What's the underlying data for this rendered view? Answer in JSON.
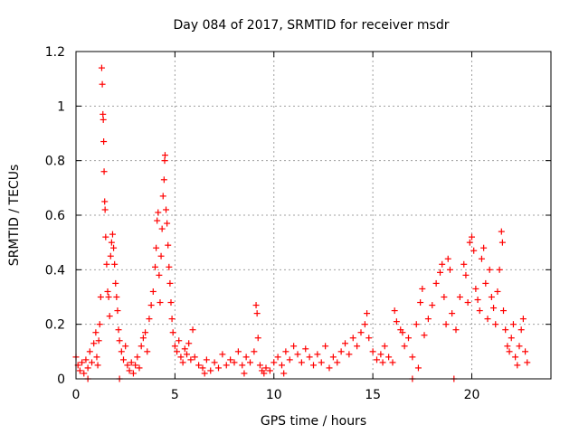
{
  "chart_data": {
    "type": "scatter",
    "title": "Day 084 of 2017, SRMTID for receiver msdr",
    "xlabel": "GPS time / hours",
    "ylabel": "SRMTID / TECUs",
    "xlim": [
      0,
      24
    ],
    "ylim": [
      0,
      1.2
    ],
    "x_ticks": [
      0,
      5,
      10,
      15,
      20
    ],
    "x_tick_labels": [
      "0",
      "5",
      "10",
      "15",
      "20"
    ],
    "y_ticks": [
      0,
      0.2,
      0.4,
      0.6,
      0.8,
      1,
      1.2
    ],
    "y_tick_labels": [
      "0",
      "0.2",
      "0.4",
      "0.6",
      "0.8",
      "1",
      "1.2"
    ],
    "grid": true,
    "marker": "+",
    "marker_color": "#ff0000",
    "series": [
      {
        "name": "SRMTID",
        "points": [
          [
            0.0,
            0.08
          ],
          [
            0.1,
            0.05
          ],
          [
            0.2,
            0.03
          ],
          [
            0.3,
            0.06
          ],
          [
            0.4,
            0.02
          ],
          [
            0.5,
            0.07
          ],
          [
            0.6,
            0.04
          ],
          [
            0.7,
            0.1
          ],
          [
            0.8,
            0.06
          ],
          [
            0.9,
            0.13
          ],
          [
            1.0,
            0.17
          ],
          [
            1.05,
            0.08
          ],
          [
            1.1,
            0.05
          ],
          [
            1.15,
            0.14
          ],
          [
            1.2,
            0.2
          ],
          [
            1.25,
            0.3
          ],
          [
            1.3,
            1.14
          ],
          [
            1.33,
            1.08
          ],
          [
            1.36,
            0.97
          ],
          [
            1.38,
            0.95
          ],
          [
            1.4,
            0.87
          ],
          [
            1.42,
            0.76
          ],
          [
            1.45,
            0.65
          ],
          [
            1.47,
            0.62
          ],
          [
            1.5,
            0.52
          ],
          [
            1.55,
            0.42
          ],
          [
            1.6,
            0.32
          ],
          [
            1.65,
            0.3
          ],
          [
            1.7,
            0.23
          ],
          [
            1.75,
            0.45
          ],
          [
            1.8,
            0.5
          ],
          [
            1.85,
            0.53
          ],
          [
            1.9,
            0.48
          ],
          [
            1.95,
            0.42
          ],
          [
            2.0,
            0.35
          ],
          [
            2.05,
            0.3
          ],
          [
            2.1,
            0.25
          ],
          [
            2.15,
            0.18
          ],
          [
            2.2,
            0.14
          ],
          [
            2.3,
            0.1
          ],
          [
            2.4,
            0.07
          ],
          [
            2.5,
            0.12
          ],
          [
            2.6,
            0.05
          ],
          [
            2.7,
            0.03
          ],
          [
            2.8,
            0.06
          ],
          [
            2.9,
            0.02
          ],
          [
            3.0,
            0.05
          ],
          [
            3.1,
            0.08
          ],
          [
            3.2,
            0.04
          ],
          [
            3.3,
            0.12
          ],
          [
            3.4,
            0.15
          ],
          [
            3.5,
            0.17
          ],
          [
            3.6,
            0.1
          ],
          [
            3.7,
            0.22
          ],
          [
            3.8,
            0.27
          ],
          [
            3.9,
            0.32
          ],
          [
            4.0,
            0.41
          ],
          [
            4.05,
            0.48
          ],
          [
            4.1,
            0.58
          ],
          [
            4.15,
            0.61
          ],
          [
            4.2,
            0.38
          ],
          [
            4.25,
            0.28
          ],
          [
            4.3,
            0.45
          ],
          [
            4.35,
            0.55
          ],
          [
            4.4,
            0.67
          ],
          [
            4.45,
            0.73
          ],
          [
            4.48,
            0.8
          ],
          [
            4.5,
            0.82
          ],
          [
            4.55,
            0.62
          ],
          [
            4.6,
            0.57
          ],
          [
            4.65,
            0.49
          ],
          [
            4.7,
            0.41
          ],
          [
            4.75,
            0.35
          ],
          [
            4.8,
            0.28
          ],
          [
            4.85,
            0.22
          ],
          [
            4.9,
            0.17
          ],
          [
            5.0,
            0.12
          ],
          [
            5.1,
            0.1
          ],
          [
            5.2,
            0.14
          ],
          [
            5.3,
            0.08
          ],
          [
            5.4,
            0.06
          ],
          [
            5.5,
            0.11
          ],
          [
            5.6,
            0.09
          ],
          [
            5.7,
            0.13
          ],
          [
            5.8,
            0.07
          ],
          [
            5.9,
            0.18
          ],
          [
            6.0,
            0.08
          ],
          [
            6.2,
            0.05
          ],
          [
            6.4,
            0.04
          ],
          [
            6.6,
            0.07
          ],
          [
            6.8,
            0.03
          ],
          [
            7.0,
            0.06
          ],
          [
            7.2,
            0.04
          ],
          [
            7.4,
            0.09
          ],
          [
            7.6,
            0.05
          ],
          [
            7.8,
            0.07
          ],
          [
            8.0,
            0.06
          ],
          [
            8.2,
            0.1
          ],
          [
            8.4,
            0.05
          ],
          [
            8.6,
            0.08
          ],
          [
            8.8,
            0.06
          ],
          [
            9.0,
            0.1
          ],
          [
            9.1,
            0.27
          ],
          [
            9.15,
            0.24
          ],
          [
            9.2,
            0.15
          ],
          [
            9.3,
            0.05
          ],
          [
            9.4,
            0.03
          ],
          [
            9.5,
            0.02
          ],
          [
            9.6,
            0.04
          ],
          [
            9.8,
            0.03
          ],
          [
            10.0,
            0.06
          ],
          [
            10.2,
            0.08
          ],
          [
            10.4,
            0.05
          ],
          [
            10.6,
            0.1
          ],
          [
            10.8,
            0.07
          ],
          [
            11.0,
            0.12
          ],
          [
            11.2,
            0.09
          ],
          [
            11.4,
            0.06
          ],
          [
            11.6,
            0.11
          ],
          [
            11.8,
            0.08
          ],
          [
            12.0,
            0.05
          ],
          [
            12.2,
            0.09
          ],
          [
            12.4,
            0.06
          ],
          [
            12.6,
            0.12
          ],
          [
            12.8,
            0.04
          ],
          [
            13.0,
            0.08
          ],
          [
            13.2,
            0.06
          ],
          [
            13.4,
            0.1
          ],
          [
            13.6,
            0.13
          ],
          [
            13.8,
            0.09
          ],
          [
            14.0,
            0.15
          ],
          [
            14.2,
            0.12
          ],
          [
            14.4,
            0.17
          ],
          [
            14.6,
            0.2
          ],
          [
            14.7,
            0.24
          ],
          [
            14.8,
            0.15
          ],
          [
            15.0,
            0.1
          ],
          [
            15.2,
            0.07
          ],
          [
            15.4,
            0.09
          ],
          [
            15.6,
            0.12
          ],
          [
            15.8,
            0.08
          ],
          [
            16.0,
            0.06
          ],
          [
            16.1,
            0.25
          ],
          [
            16.2,
            0.21
          ],
          [
            16.4,
            0.18
          ],
          [
            16.6,
            0.12
          ],
          [
            16.8,
            0.15
          ],
          [
            17.0,
            0.08
          ],
          [
            17.2,
            0.2
          ],
          [
            17.4,
            0.28
          ],
          [
            17.5,
            0.33
          ],
          [
            17.6,
            0.16
          ],
          [
            17.8,
            0.22
          ],
          [
            18.0,
            0.27
          ],
          [
            18.2,
            0.35
          ],
          [
            18.4,
            0.39
          ],
          [
            18.5,
            0.42
          ],
          [
            18.6,
            0.3
          ],
          [
            18.8,
            0.44
          ],
          [
            18.9,
            0.4
          ],
          [
            19.0,
            0.24
          ],
          [
            19.2,
            0.18
          ],
          [
            19.4,
            0.3
          ],
          [
            19.6,
            0.42
          ],
          [
            19.7,
            0.38
          ],
          [
            19.8,
            0.28
          ],
          [
            19.9,
            0.5
          ],
          [
            20.0,
            0.52
          ],
          [
            20.1,
            0.47
          ],
          [
            20.2,
            0.33
          ],
          [
            20.3,
            0.29
          ],
          [
            20.4,
            0.25
          ],
          [
            20.5,
            0.44
          ],
          [
            20.6,
            0.48
          ],
          [
            20.7,
            0.35
          ],
          [
            20.8,
            0.22
          ],
          [
            21.0,
            0.3
          ],
          [
            21.1,
            0.26
          ],
          [
            21.2,
            0.2
          ],
          [
            21.3,
            0.32
          ],
          [
            21.4,
            0.4
          ],
          [
            21.5,
            0.54
          ],
          [
            21.55,
            0.5
          ],
          [
            21.6,
            0.25
          ],
          [
            21.7,
            0.18
          ],
          [
            21.8,
            0.12
          ],
          [
            21.9,
            0.1
          ],
          [
            22.0,
            0.15
          ],
          [
            22.1,
            0.2
          ],
          [
            22.2,
            0.08
          ],
          [
            22.3,
            0.05
          ],
          [
            22.4,
            0.12
          ],
          [
            22.5,
            0.18
          ],
          [
            22.6,
            0.22
          ],
          [
            22.7,
            0.1
          ],
          [
            22.8,
            0.06
          ],
          [
            17.0,
            0.0
          ],
          [
            19.1,
            0.0
          ],
          [
            17.3,
            0.04
          ],
          [
            18.7,
            0.2
          ],
          [
            20.9,
            0.4
          ],
          [
            16.5,
            0.17
          ],
          [
            15.5,
            0.06
          ],
          [
            10.5,
            0.02
          ],
          [
            8.5,
            0.02
          ],
          [
            6.5,
            0.02
          ],
          [
            2.2,
            0.0
          ],
          [
            0.6,
            0.0
          ]
        ]
      }
    ]
  }
}
